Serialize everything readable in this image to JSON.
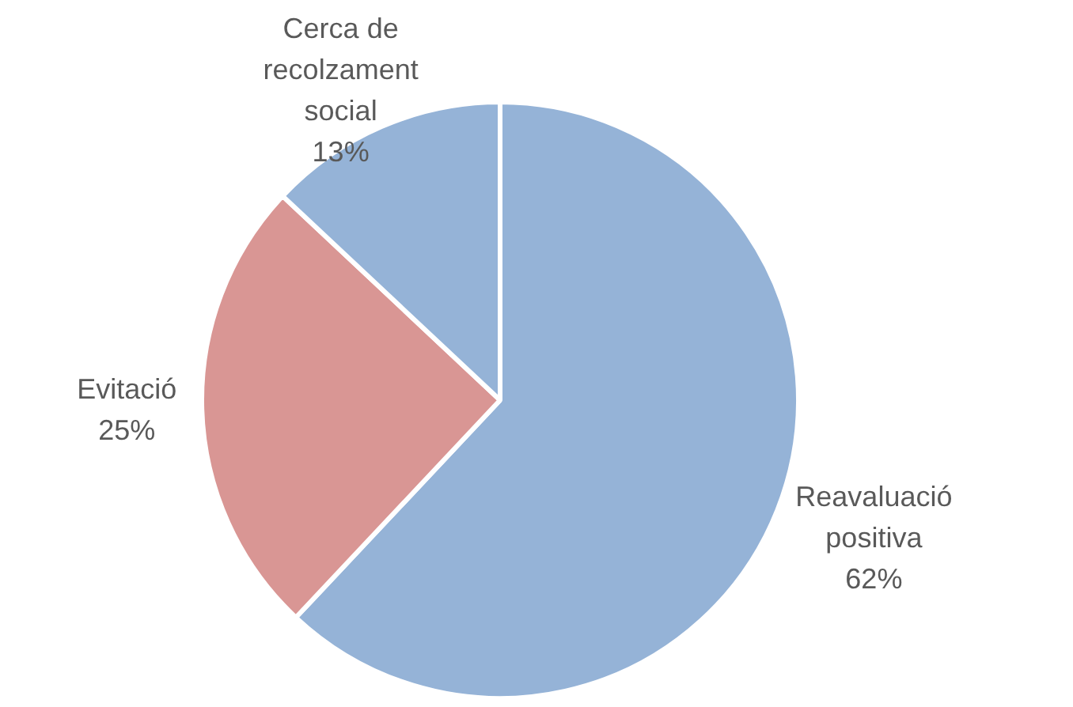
{
  "chart_data": {
    "type": "pie",
    "categories": [
      "Reavaluació positiva",
      "Evitació",
      "Cerca de recolzament social"
    ],
    "values": [
      62,
      25,
      13
    ],
    "colors": [
      "#95b3d7",
      "#d99694",
      "#95b3d7"
    ],
    "value_labels": [
      "62%",
      "25%",
      "13%"
    ],
    "legend": false
  }
}
